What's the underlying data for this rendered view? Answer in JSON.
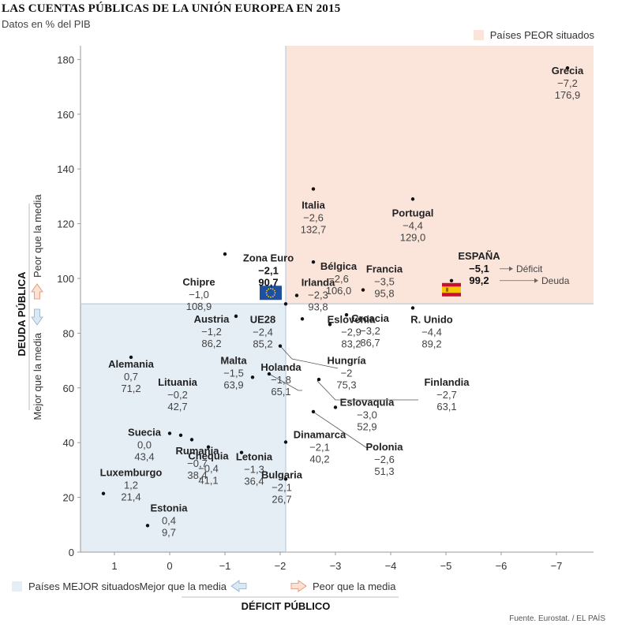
{
  "header": {
    "title": "LAS CUENTAS PÚBLICAS DE LA UNIÓN EUROPEA EN 2015",
    "subtitle": "Datos en % del PIB"
  },
  "legend": {
    "worse": "Países PEOR situados",
    "better": "Países MEJOR situados",
    "worse_color": "#fbe4da",
    "better_color": "#e5edf5"
  },
  "source": "Fuente. Eurostat. / EL PAÍS",
  "callouts": {
    "deficit": "Déficit",
    "debt": "Deuda"
  },
  "chart_data": {
    "type": "scatter",
    "title": "LAS CUENTAS PÚBLICAS DE LA UNIÓN EUROPEA EN 2015",
    "xlabel": "DÉFICIT PÚBLICO",
    "ylabel": "DEUDA PÚBLICA",
    "x_axis_note": "x axis reversed: positive (surplus) to the left, negative (deficit) to the right",
    "xlim": [
      1.7,
      -7.6
    ],
    "ylim": [
      0,
      186
    ],
    "x_ticks": [
      1,
      0,
      -1,
      -2,
      -3,
      -4,
      -5,
      -6,
      -7
    ],
    "x_tick_labels": [
      "1",
      "0",
      "−1",
      "−2",
      "−3",
      "−4",
      "−5",
      "−6",
      "−7"
    ],
    "y_ticks": [
      0,
      20,
      40,
      60,
      80,
      100,
      120,
      140,
      160,
      180
    ],
    "y_tick_labels": [
      "0",
      "20",
      "40",
      "60",
      "80",
      "100",
      "120",
      "140",
      "160",
      "180"
    ],
    "reference": {
      "name": "Zona Euro",
      "deficit": -2.1,
      "debt": 90.7
    },
    "x_hint_left": "Mejor que la media",
    "x_hint_right": "Peor que la media",
    "y_hint_bottom": "Mejor que la media",
    "y_hint_top": "Peor que la media",
    "points": [
      {
        "name": "Grecia",
        "deficit": -7.2,
        "debt": 176.9,
        "deficit_label": "−7,2",
        "debt_label": "176,9"
      },
      {
        "name": "Italia",
        "deficit": -2.6,
        "debt": 132.7,
        "deficit_label": "−2,6",
        "debt_label": "132,7"
      },
      {
        "name": "Portugal",
        "deficit": -4.4,
        "debt": 129.0,
        "deficit_label": "−4,4",
        "debt_label": "129,0"
      },
      {
        "name": "Bélgica",
        "deficit": -2.6,
        "debt": 106.0,
        "deficit_label": "−2,6",
        "debt_label": "106,0"
      },
      {
        "name": "Chipre",
        "deficit": -1.0,
        "debt": 108.9,
        "deficit_label": "−1,0",
        "debt_label": "108,9"
      },
      {
        "name": "Zona Euro",
        "deficit": -2.1,
        "debt": 90.7,
        "deficit_label": "−2,1",
        "debt_label": "90,7",
        "bold": true
      },
      {
        "name": "Francia",
        "deficit": -3.5,
        "debt": 95.8,
        "deficit_label": "−3,5",
        "debt_label": "95,8"
      },
      {
        "name": "ESPAÑA",
        "deficit": -5.1,
        "debt": 99.2,
        "deficit_label": "−5,1",
        "debt_label": "99,2",
        "bold": true
      },
      {
        "name": "Irlanda",
        "deficit": -2.3,
        "debt": 93.8,
        "deficit_label": "−2,3",
        "debt_label": "93,8"
      },
      {
        "name": "R. Unido",
        "deficit": -4.4,
        "debt": 89.2,
        "deficit_label": "−4,4",
        "debt_label": "89,2"
      },
      {
        "name": "Austria",
        "deficit": -1.2,
        "debt": 86.2,
        "deficit_label": "−1,2",
        "debt_label": "86,2"
      },
      {
        "name": "UE28",
        "deficit": -2.4,
        "debt": 85.2,
        "deficit_label": "−2,4",
        "debt_label": "85,2"
      },
      {
        "name": "Croacia",
        "deficit": -3.2,
        "debt": 86.7,
        "deficit_label": "−3,2",
        "debt_label": "86,7"
      },
      {
        "name": "Eslovenia",
        "deficit": -2.9,
        "debt": 83.2,
        "deficit_label": "−2,9",
        "debt_label": "83,2"
      },
      {
        "name": "Alemania",
        "deficit": 0.7,
        "debt": 71.2,
        "deficit_label": "0,7",
        "debt_label": "71,2"
      },
      {
        "name": "Lituania",
        "deficit": -0.2,
        "debt": 42.7,
        "deficit_label": "−0,2",
        "debt_label": "42,7"
      },
      {
        "name": "Malta",
        "deficit": -1.5,
        "debt": 63.9,
        "deficit_label": "−1,5",
        "debt_label": "63,9"
      },
      {
        "name": "Hungría",
        "deficit": -2.0,
        "debt": 75.3,
        "deficit_label": "−2",
        "debt_label": "75,3"
      },
      {
        "name": "Holanda",
        "deficit": -1.8,
        "debt": 65.1,
        "deficit_label": "−1,8",
        "debt_label": "65,1"
      },
      {
        "name": "Chequia",
        "deficit": -0.4,
        "debt": 41.1,
        "deficit_label": "−0,4",
        "debt_label": "41,1"
      },
      {
        "name": "Finlandia",
        "deficit": -2.7,
        "debt": 63.1,
        "deficit_label": "−2,7",
        "debt_label": "63,1"
      },
      {
        "name": "Eslovaquia",
        "deficit": -3.0,
        "debt": 52.9,
        "deficit_label": "−3,0",
        "debt_label": "52,9"
      },
      {
        "name": "Suecia",
        "deficit": 0.0,
        "debt": 43.4,
        "deficit_label": "0,0",
        "debt_label": "43,4"
      },
      {
        "name": "Dinamarca",
        "deficit": -2.1,
        "debt": 40.2,
        "deficit_label": "−2,1",
        "debt_label": "40,2"
      },
      {
        "name": "Rumania",
        "deficit": -0.7,
        "debt": 38.4,
        "deficit_label": "−0,7",
        "debt_label": "38,4"
      },
      {
        "name": "Letonia",
        "deficit": -1.3,
        "debt": 36.4,
        "deficit_label": "−1,3",
        "debt_label": "36,4"
      },
      {
        "name": "Polonia",
        "deficit": -2.6,
        "debt": 51.3,
        "deficit_label": "−2,6",
        "debt_label": "51,3"
      },
      {
        "name": "Luxemburgo",
        "deficit": 1.2,
        "debt": 21.4,
        "deficit_label": "1,2",
        "debt_label": "21,4"
      },
      {
        "name": "Bulgaria",
        "deficit": -2.1,
        "debt": 26.7,
        "deficit_label": "−2,1",
        "debt_label": "26,7"
      },
      {
        "name": "Estonia",
        "deficit": 0.4,
        "debt": 9.7,
        "deficit_label": "0,4",
        "debt_label": "9,7"
      }
    ]
  }
}
